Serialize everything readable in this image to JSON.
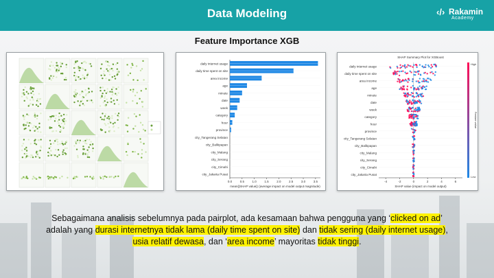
{
  "header": {
    "title": "Data Modeling",
    "bg_color": "#17a2a6"
  },
  "logo": {
    "mark": "‹/›",
    "name": "Rakamin",
    "sub": "Academy"
  },
  "subtitle": "Feature Importance XGB",
  "charts": [
    {
      "type": "bar",
      "features": [
        "daily internet usage",
        "daily time spent on site",
        "area income",
        "age",
        "minute",
        "date",
        "week",
        "category",
        "hour",
        "province",
        "city_Tangerang Selatan",
        "city_Balikpapan",
        "city_Malang",
        "city_Serang",
        "city_Cimahi",
        "city_Jakarta Pusat"
      ],
      "values": [
        3.6,
        2.6,
        1.3,
        0.7,
        0.5,
        0.4,
        0.3,
        0.2,
        0.1,
        0.05,
        0,
        0,
        0,
        0,
        0,
        0
      ],
      "xticks": [
        "0.0",
        "0.5",
        "1.0",
        "1.5",
        "2.0",
        "2.5",
        "3.0",
        "3.5"
      ],
      "xlabel": "mean(|SHAP value|) (average impact on model output magnitude)",
      "bar_color": "#1e88e5"
    },
    {
      "type": "beeswarm",
      "title": "SHAP Summary Plot for XGBoost",
      "xticks": [
        "-4",
        "-2",
        "0",
        "2",
        "4",
        "6"
      ],
      "xlabel": "SHAP value (impact on model output)",
      "colorbar": {
        "high": "High",
        "low": "Low",
        "label": "Feature value"
      }
    }
  ],
  "caption": {
    "part1": "Sebagaimana analisis sebelumnya pada pairplot, ada kesamaan bahwa pengguna yang ‘",
    "hl1": "clicked on ad",
    "part2": "’ adalah yang ",
    "hl2": "durasi internetnya tidak lama (daily time spent on site)",
    "part3": " dan ",
    "hl3": "tidak sering (daily internet usage)",
    "part4": ", ",
    "hl4": "usia relatif dewasa",
    "part5": ", dan ‘",
    "hl5": "area income",
    "part6": "’ mayoritas ",
    "hl6": "tidak tinggi",
    "part7": "."
  }
}
